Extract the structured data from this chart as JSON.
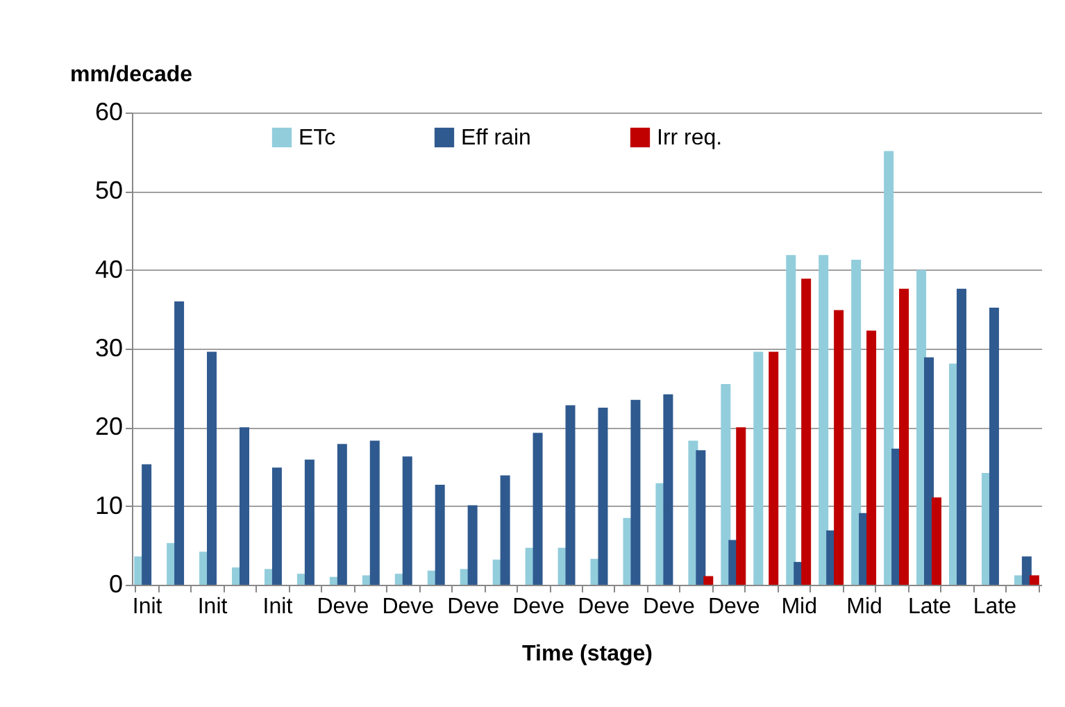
{
  "chart_data": {
    "type": "bar",
    "ylabel": "mm/decade",
    "xlabel": "Time (stage)",
    "categories": [
      "Init",
      null,
      "Init",
      null,
      "Init",
      null,
      "Deve",
      null,
      "Deve",
      null,
      "Deve",
      null,
      "Deve",
      null,
      "Deve",
      null,
      "Deve",
      null,
      "Deve",
      null,
      "Mid",
      null,
      "Mid",
      null,
      "Late",
      null,
      "Late",
      null
    ],
    "series": [
      {
        "name": "ETc",
        "color": "#92cddc",
        "values": [
          3.6,
          5.3,
          4.2,
          2.2,
          2.0,
          1.4,
          1.0,
          1.2,
          1.4,
          1.8,
          2.0,
          3.2,
          4.7,
          4.7,
          3.3,
          8.5,
          12.9,
          18.3,
          25.5,
          29.6,
          41.9,
          41.9,
          41.3,
          55.1,
          40.0,
          28.1,
          14.2,
          1.2
        ]
      },
      {
        "name": "Eff rain",
        "color": "#2f5a8f",
        "values": [
          15.3,
          36.0,
          29.6,
          20.0,
          14.9,
          15.9,
          17.9,
          18.3,
          16.3,
          12.7,
          10.1,
          13.9,
          19.3,
          22.8,
          22.5,
          23.5,
          24.2,
          17.1,
          5.7,
          0,
          2.9,
          6.9,
          9.1,
          17.3,
          28.9,
          37.6,
          35.2,
          3.6
        ]
      },
      {
        "name": "Irr req.",
        "color": "#c00000",
        "values": [
          0,
          0,
          0,
          0,
          0,
          0,
          0,
          0,
          0,
          0,
          0,
          0,
          0,
          0,
          0,
          0,
          0,
          1.1,
          20.0,
          29.6,
          38.9,
          34.9,
          32.3,
          37.6,
          11.1,
          0,
          0,
          1.2
        ]
      }
    ],
    "ylim": [
      0,
      60
    ],
    "yticks": [
      0,
      10,
      20,
      30,
      40,
      50,
      60
    ],
    "grid": "y",
    "legend": "top"
  }
}
